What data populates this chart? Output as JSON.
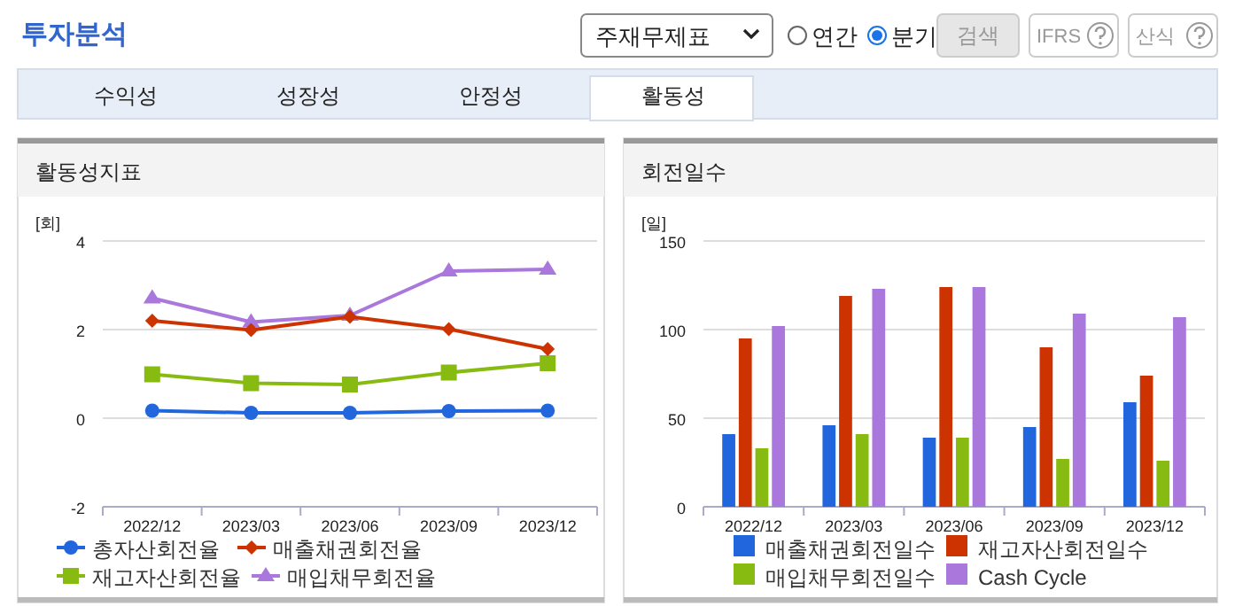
{
  "chart_data": [
    {
      "type": "other",
      "title": "투자분석",
      "annotations": [
        "주재무제표",
        "연간",
        "분기",
        "검색",
        "IFRS",
        "산식",
        "수익성",
        "성장성",
        "안정성",
        "활동성"
      ]
    },
    {
      "type": "line",
      "title": "활동성지표",
      "ylabel": "[회]",
      "categories": [
        "2022/12",
        "2023/03",
        "2023/06",
        "2023/09",
        "2023/12"
      ],
      "ylim": [
        -2,
        4
      ],
      "yticks": [
        -2,
        0,
        2,
        4
      ],
      "grid": "y",
      "legend": "bottom",
      "series": [
        {
          "name": "총자산회전율",
          "color": "#2266dd",
          "marker": "circle",
          "values": [
            0.17,
            0.12,
            0.12,
            0.16,
            0.17
          ]
        },
        {
          "name": "매출채권회전율",
          "color": "#cc3300",
          "marker": "diamond",
          "values": [
            2.2,
            1.99,
            2.29,
            2.01,
            1.56
          ]
        },
        {
          "name": "재고자산회전율",
          "color": "#88bb11",
          "marker": "square",
          "values": [
            0.99,
            0.79,
            0.76,
            1.03,
            1.24
          ]
        },
        {
          "name": "매입채무회전율",
          "color": "#aa77dd",
          "marker": "triangle",
          "values": [
            2.71,
            2.17,
            2.32,
            3.32,
            3.36
          ]
        }
      ]
    },
    {
      "type": "bar",
      "title": "회전일수",
      "ylabel": "[일]",
      "categories": [
        "2022/12",
        "2023/03",
        "2023/06",
        "2023/09",
        "2023/12"
      ],
      "ylim": [
        0,
        150
      ],
      "yticks": [
        0,
        50,
        100,
        150
      ],
      "grid": "y",
      "legend": "bottom",
      "series": [
        {
          "name": "매출채권회전일수",
          "color": "#2266dd",
          "values": [
            41,
            46,
            39,
            45,
            59
          ]
        },
        {
          "name": "재고자산회전일수",
          "color": "#cc3300",
          "values": [
            95,
            119,
            124,
            90,
            74
          ]
        },
        {
          "name": "매입채무회전일수",
          "color": "#88bb11",
          "values": [
            33,
            41,
            39,
            27,
            26
          ]
        },
        {
          "name": "Cash Cycle",
          "color": "#aa77dd",
          "values": [
            102,
            123,
            124,
            109,
            107
          ]
        }
      ]
    }
  ]
}
